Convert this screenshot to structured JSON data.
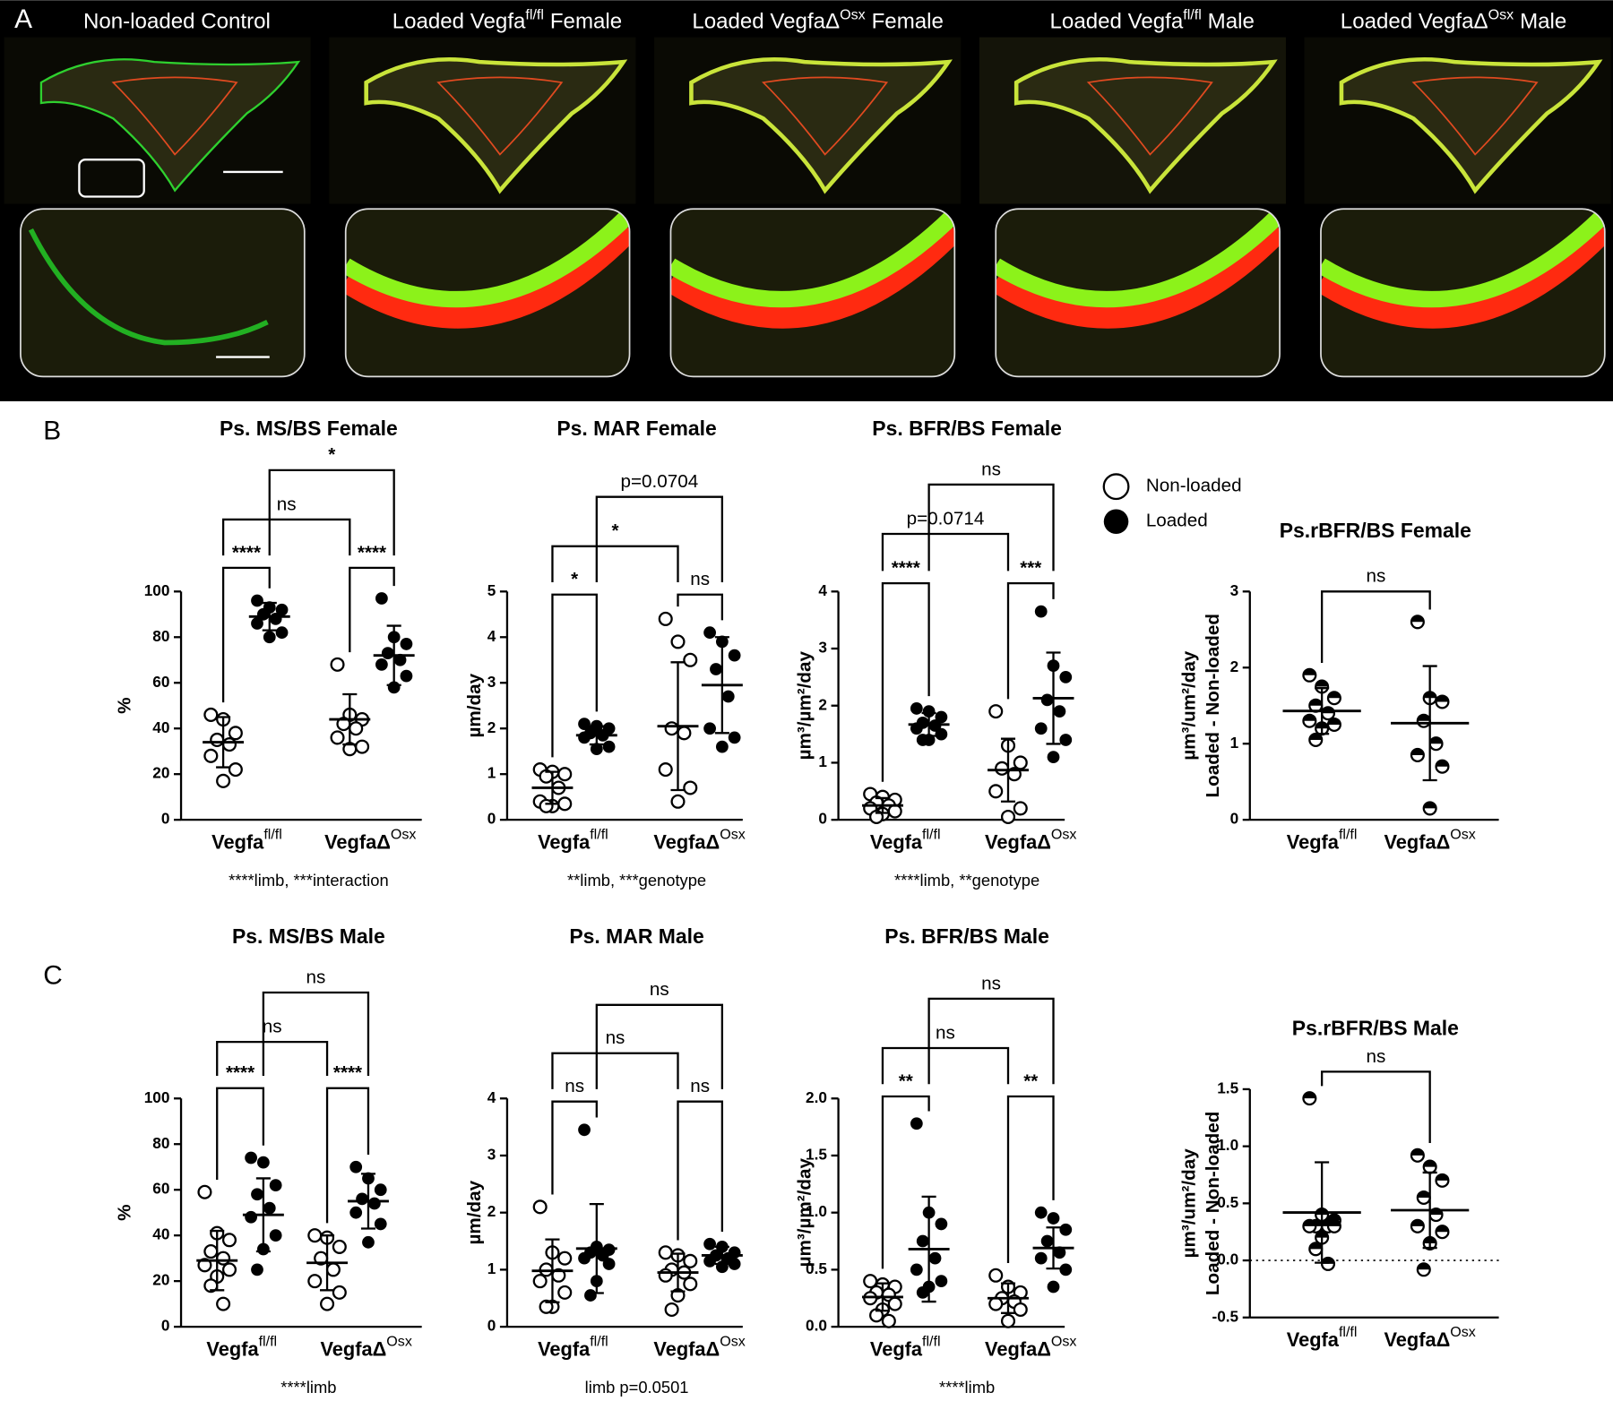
{
  "labels": [
    "A",
    "B",
    "C"
  ],
  "images": [
    {
      "title": "Non-loaded Control"
    },
    {
      "title": "Loaded Vegfa",
      "sup": "fl/fl",
      "title_end": "Female"
    },
    {
      "title": "Loaded VegfaΔ",
      "sup": "Osx",
      "title_end": "Female"
    },
    {
      "title": "Loaded Vegfa",
      "sup": "fl/fl",
      "title_end": "Male"
    },
    {
      "title": "Loaded VegfaΔ",
      "sup": "Osx",
      "title_end": "Male"
    }
  ],
  "legend": [
    {
      "name": "Non-loaded",
      "marker": "open"
    },
    {
      "name": "Loaded",
      "marker": "filled"
    }
  ],
  "chart_data": [
    {
      "type": "dot",
      "title": "Ps. MS/BS Female",
      "ylabel": "%",
      "ylim": [
        0,
        100
      ],
      "yticks": [
        0,
        20,
        40,
        60,
        80,
        100
      ],
      "categories": [
        "Vegfa",
        "VegfaΔ"
      ],
      "category_sups": [
        "fl/fl",
        "Osx"
      ],
      "series": [
        {
          "marker": "open",
          "values": [
            [
              46,
              44,
              38,
              35,
              33,
              28,
              22,
              17
            ],
            [
              68,
              46,
              44,
              42,
              40,
              36,
              32,
              31
            ]
          ],
          "mean": [
            34,
            44
          ],
          "sd": [
            11,
            11
          ]
        },
        {
          "marker": "filled",
          "values": [
            [
              96,
              93,
              92,
              90,
              88,
              86,
              82,
              80
            ],
            [
              97,
              80,
              77,
              73,
              70,
              68,
              63,
              58
            ]
          ],
          "mean": [
            89,
            72
          ],
          "sd": [
            6,
            13
          ]
        }
      ],
      "brackets": [
        "****",
        "****",
        "ns",
        "*"
      ],
      "note": "****limb, ***interaction"
    },
    {
      "type": "dot",
      "title": "Ps. MAR Female",
      "ylabel": "µm/day",
      "ylim": [
        0,
        5
      ],
      "yticks": [
        0,
        1,
        2,
        3,
        4,
        5
      ],
      "categories": [
        "Vegfa",
        "VegfaΔ"
      ],
      "category_sups": [
        "fl/fl",
        "Osx"
      ],
      "series": [
        {
          "marker": "open",
          "values": [
            [
              1.1,
              1.05,
              1.0,
              0.95,
              0.7,
              0.4,
              0.35,
              0.3,
              0.3
            ],
            [
              4.4,
              3.9,
              3.5,
              2.0,
              1.9,
              1.1,
              0.7,
              0.4
            ]
          ],
          "mean": [
            0.7,
            2.05
          ],
          "sd": [
            0.35,
            1.4
          ]
        },
        {
          "marker": "filled",
          "values": [
            [
              2.1,
              2.05,
              2.0,
              1.9,
              1.85,
              1.8,
              1.6,
              1.55
            ],
            [
              4.1,
              3.9,
              3.6,
              3.3,
              2.7,
              2.0,
              1.8,
              1.6
            ]
          ],
          "mean": [
            1.85,
            2.95
          ],
          "sd": [
            0.2,
            1.05
          ]
        }
      ],
      "brackets": [
        "*",
        "ns",
        "*",
        "p=0.0704"
      ],
      "note": "**limb, ***genotype"
    },
    {
      "type": "dot",
      "title": "Ps. BFR/BS Female",
      "ylabel": "µm³/µm²/day",
      "ylim": [
        0,
        4
      ],
      "yticks": [
        0,
        1,
        2,
        3,
        4
      ],
      "categories": [
        "Vegfa",
        "VegfaΔ"
      ],
      "category_sups": [
        "fl/fl",
        "Osx"
      ],
      "series": [
        {
          "marker": "open",
          "values": [
            [
              0.45,
              0.4,
              0.35,
              0.3,
              0.25,
              0.2,
              0.15,
              0.1,
              0.05
            ],
            [
              1.9,
              1.3,
              1.0,
              0.9,
              0.8,
              0.5,
              0.2,
              0.05
            ]
          ],
          "mean": [
            0.25,
            0.87
          ],
          "sd": [
            0.13,
            0.55
          ]
        },
        {
          "marker": "filled",
          "values": [
            [
              1.95,
              1.9,
              1.8,
              1.7,
              1.65,
              1.6,
              1.5,
              1.4,
              1.4
            ],
            [
              3.65,
              2.7,
              2.5,
              2.1,
              1.9,
              1.6,
              1.4,
              1.1
            ]
          ],
          "mean": [
            1.67,
            2.13
          ],
          "sd": [
            0.2,
            0.8
          ]
        }
      ],
      "brackets": [
        "****",
        "***",
        "p=0.0714",
        "ns"
      ],
      "note": "****limb, **genotype"
    },
    {
      "type": "dot",
      "title": "Ps.rBFR/BS Female",
      "ylabel": [
        "µm³/um²/day",
        "Loaded - Non-loaded"
      ],
      "ylim": [
        0,
        3
      ],
      "yticks": [
        0,
        1,
        2,
        3
      ],
      "categories": [
        "Vegfa",
        "VegfaΔ"
      ],
      "category_sups": [
        "fl/fl",
        "Osx"
      ],
      "series": [
        {
          "marker": "half",
          "values": [
            [
              1.9,
              1.75,
              1.6,
              1.5,
              1.4,
              1.3,
              1.25,
              1.2,
              1.05
            ],
            [
              2.6,
              1.6,
              1.55,
              1.3,
              1.0,
              0.85,
              0.7,
              0.15
            ]
          ],
          "mean": [
            1.43,
            1.27
          ],
          "sd": [
            0.3,
            0.75
          ]
        }
      ],
      "brackets": [
        "ns"
      ]
    },
    {
      "type": "dot",
      "title": "Ps. MS/BS Male",
      "ylabel": "%",
      "ylim": [
        0,
        100
      ],
      "yticks": [
        0,
        20,
        40,
        60,
        80,
        100
      ],
      "categories": [
        "Vegfa",
        "VegfaΔ"
      ],
      "category_sups": [
        "fl/fl",
        "Osx"
      ],
      "series": [
        {
          "marker": "open",
          "values": [
            [
              59,
              41,
              38,
              33,
              30,
              27,
              25,
              22,
              18,
              10
            ],
            [
              40,
              39,
              35,
              30,
              25,
              20,
              15,
              10
            ]
          ],
          "mean": [
            29,
            28
          ],
          "sd": [
            13,
            12
          ]
        },
        {
          "marker": "filled",
          "values": [
            [
              74,
              72,
              62,
              58,
              52,
              48,
              40,
              34,
              25
            ],
            [
              70,
              65,
              60,
              56,
              54,
              50,
              45,
              37
            ]
          ],
          "mean": [
            49,
            55
          ],
          "sd": [
            16,
            12
          ]
        }
      ],
      "brackets": [
        "****",
        "****",
        "ns",
        "ns"
      ],
      "note": "****limb"
    },
    {
      "type": "dot",
      "title": "Ps. MAR Male",
      "ylabel": "µm/day",
      "ylim": [
        0,
        4
      ],
      "yticks": [
        0,
        1,
        2,
        3,
        4
      ],
      "categories": [
        "Vegfa",
        "VegfaΔ"
      ],
      "category_sups": [
        "fl/fl",
        "Osx"
      ],
      "series": [
        {
          "marker": "open",
          "values": [
            [
              2.1,
              1.3,
              1.2,
              1.0,
              0.9,
              0.8,
              0.6,
              0.35,
              0.35
            ],
            [
              1.3,
              1.25,
              1.15,
              1.0,
              0.95,
              0.9,
              0.75,
              0.55,
              0.3
            ]
          ],
          "mean": [
            0.98,
            0.95
          ],
          "sd": [
            0.55,
            0.33
          ]
        },
        {
          "marker": "filled",
          "values": [
            [
              3.45,
              1.4,
              1.35,
              1.3,
              1.25,
              1.2,
              1.1,
              0.8,
              0.55
            ],
            [
              1.45,
              1.4,
              1.3,
              1.25,
              1.2,
              1.15,
              1.1,
              1.05
            ]
          ],
          "mean": [
            1.37,
            1.25
          ],
          "sd": [
            0.78,
            0.15
          ]
        }
      ],
      "brackets": [
        "ns",
        "ns",
        "ns",
        "ns"
      ],
      "note": "limb p=0.0501"
    },
    {
      "type": "dot",
      "title": "Ps. BFR/BS Male",
      "ylabel": "µm³/µm²/day",
      "ylim": [
        0,
        2
      ],
      "yticks": [
        {
          "value": 0,
          "label": "0.0"
        },
        {
          "value": 0.5,
          "label": "0.5"
        },
        {
          "value": 1,
          "label": "1.0"
        },
        {
          "value": 1.5,
          "label": "1.5"
        },
        {
          "value": 2,
          "label": "2.0"
        }
      ],
      "categories": [
        "Vegfa",
        "VegfaΔ"
      ],
      "category_sups": [
        "fl/fl",
        "Osx"
      ],
      "series": [
        {
          "marker": "open",
          "values": [
            [
              0.4,
              0.37,
              0.35,
              0.3,
              0.28,
              0.25,
              0.2,
              0.15,
              0.1,
              0.05
            ],
            [
              0.45,
              0.35,
              0.3,
              0.25,
              0.22,
              0.2,
              0.15,
              0.05
            ]
          ],
          "mean": [
            0.26,
            0.25
          ],
          "sd": [
            0.12,
            0.13
          ]
        },
        {
          "marker": "filled",
          "values": [
            [
              1.78,
              1.0,
              0.9,
              0.75,
              0.6,
              0.5,
              0.4,
              0.35,
              0.3
            ],
            [
              1.0,
              0.95,
              0.85,
              0.75,
              0.65,
              0.6,
              0.5,
              0.35
            ]
          ],
          "mean": [
            0.68,
            0.69
          ],
          "sd": [
            0.46,
            0.18
          ]
        }
      ],
      "brackets": [
        "**",
        "**",
        "ns",
        "ns"
      ],
      "note": "****limb"
    },
    {
      "type": "dot",
      "title": "Ps.rBFR/BS Male",
      "ylabel": [
        "µm³/um²/day",
        "Loaded - Non-loaded"
      ],
      "ylim": [
        -0.5,
        1.5
      ],
      "yticks": [
        {
          "value": -0.5,
          "label": "-0.5"
        },
        {
          "value": 0,
          "label": "0.0"
        },
        {
          "value": 0.5,
          "label": "0.5"
        },
        {
          "value": 1,
          "label": "1.0"
        },
        {
          "value": 1.5,
          "label": "1.5"
        }
      ],
      "zero_line": true,
      "categories": [
        "Vegfa",
        "VegfaΔ"
      ],
      "category_sups": [
        "fl/fl",
        "Osx"
      ],
      "series": [
        {
          "marker": "half",
          "values": [
            [
              1.42,
              0.4,
              0.35,
              0.3,
              0.3,
              0.3,
              0.3,
              0.2,
              0.1,
              -0.03
            ],
            [
              0.92,
              0.82,
              0.7,
              0.55,
              0.4,
              0.3,
              0.25,
              0.15,
              -0.08
            ]
          ],
          "mean": [
            0.42,
            0.44
          ],
          "sd": [
            0.44,
            0.33
          ]
        }
      ],
      "brackets": [
        "ns"
      ]
    }
  ]
}
